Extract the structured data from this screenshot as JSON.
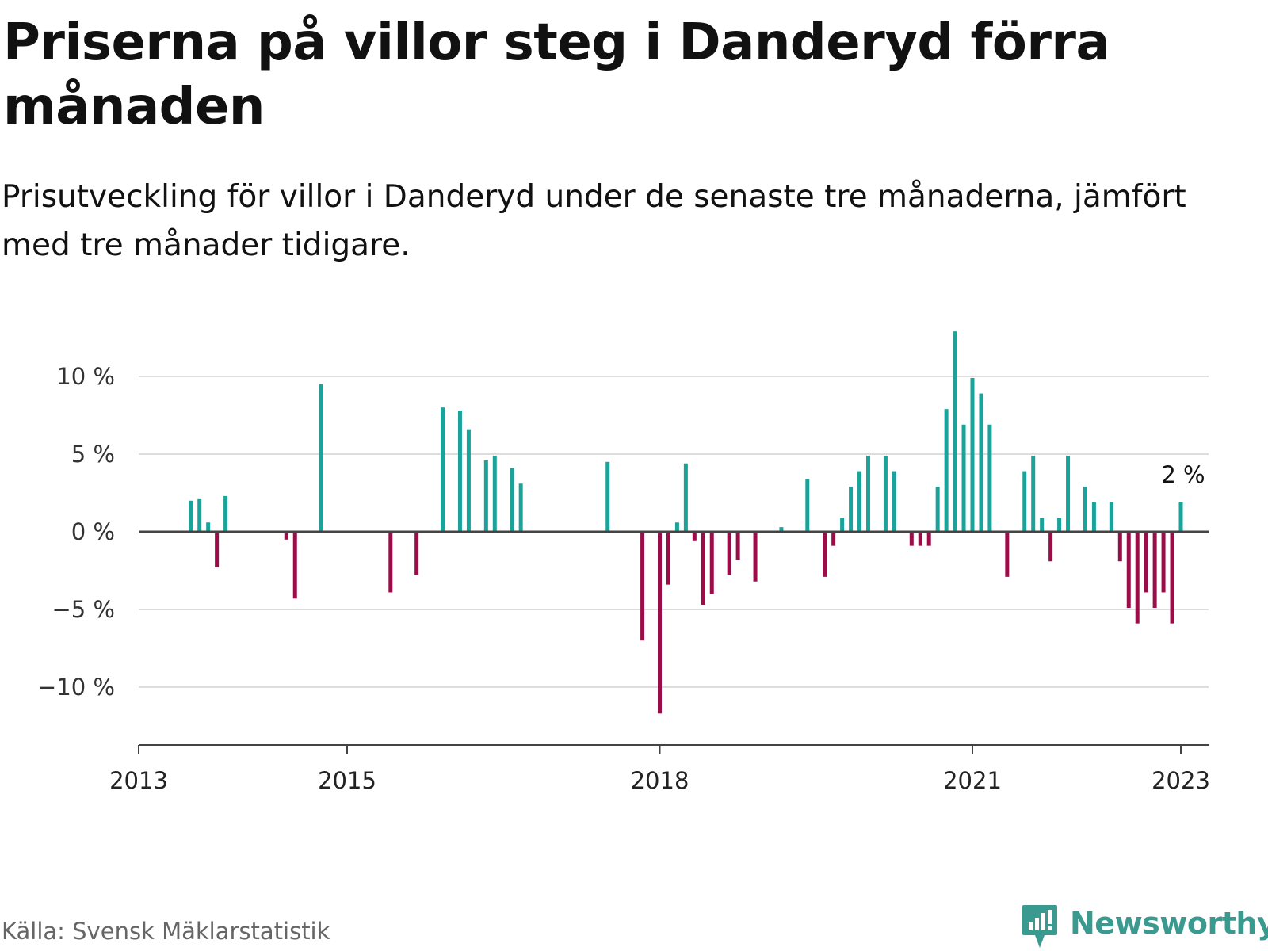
{
  "title": "Priserna på villor steg i Danderyd förra månaden",
  "subtitle": "Prisutveckling för villor i Danderyd under de senaste tre månaderna, jämfört med tre månader tidigare.",
  "source": "Källa: Svensk Mäklarstatistik",
  "brand": "Newsworthy",
  "colors": {
    "positive": "#1aa39a",
    "negative": "#9b0d48",
    "gridline": "#dddddd",
    "zeroline": "#444444",
    "brand": "#3a9a8f"
  },
  "chart_data": {
    "type": "bar",
    "title": "Priserna på villor steg i Danderyd förra månaden",
    "xlabel": "",
    "ylabel": "",
    "ylim": [
      -13.5,
      13
    ],
    "xlim": [
      "2013-01",
      "2023-03"
    ],
    "grid": true,
    "legend": "none",
    "yticks": [
      {
        "value": 10,
        "label": "10 %"
      },
      {
        "value": 5,
        "label": "5 %"
      },
      {
        "value": 0,
        "label": "0 %"
      },
      {
        "value": -5,
        "label": "−5 %"
      },
      {
        "value": -10,
        "label": "−10 %"
      }
    ],
    "xticks": [
      {
        "value": "2013-01",
        "label": "2013"
      },
      {
        "value": "2015-01",
        "label": "2015"
      },
      {
        "value": "2018-01",
        "label": "2018"
      },
      {
        "value": "2021-01",
        "label": "2021"
      },
      {
        "value": "2023-01",
        "label": "2023"
      }
    ],
    "annotation": {
      "x": "2023-01",
      "label": "2 %"
    },
    "bars": [
      {
        "x": "2013-07",
        "value": 2.0
      },
      {
        "x": "2013-08",
        "value": 2.1
      },
      {
        "x": "2013-09",
        "value": 0.6
      },
      {
        "x": "2013-10",
        "value": -2.3
      },
      {
        "x": "2013-11",
        "value": 2.3
      },
      {
        "x": "2014-06",
        "value": -0.5
      },
      {
        "x": "2014-07",
        "value": -4.3
      },
      {
        "x": "2014-10",
        "value": 9.5
      },
      {
        "x": "2015-06",
        "value": -3.9
      },
      {
        "x": "2015-09",
        "value": -2.8
      },
      {
        "x": "2015-12",
        "value": 8.0
      },
      {
        "x": "2016-02",
        "value": 7.8
      },
      {
        "x": "2016-03",
        "value": 6.6
      },
      {
        "x": "2016-05",
        "value": 4.6
      },
      {
        "x": "2016-06",
        "value": 4.9
      },
      {
        "x": "2016-08",
        "value": 4.1
      },
      {
        "x": "2016-09",
        "value": 3.1
      },
      {
        "x": "2017-07",
        "value": 4.5
      },
      {
        "x": "2017-11",
        "value": -7.0
      },
      {
        "x": "2018-01",
        "value": -11.7
      },
      {
        "x": "2018-02",
        "value": -3.4
      },
      {
        "x": "2018-03",
        "value": 0.6
      },
      {
        "x": "2018-04",
        "value": 4.4
      },
      {
        "x": "2018-05",
        "value": -0.6
      },
      {
        "x": "2018-06",
        "value": -4.7
      },
      {
        "x": "2018-07",
        "value": -4.0
      },
      {
        "x": "2018-09",
        "value": -2.8
      },
      {
        "x": "2018-10",
        "value": -1.8
      },
      {
        "x": "2018-12",
        "value": -3.2
      },
      {
        "x": "2019-03",
        "value": 0.3
      },
      {
        "x": "2019-06",
        "value": 3.4
      },
      {
        "x": "2019-08",
        "value": -2.9
      },
      {
        "x": "2019-09",
        "value": -0.9
      },
      {
        "x": "2019-10",
        "value": 0.9
      },
      {
        "x": "2019-11",
        "value": 2.9
      },
      {
        "x": "2019-12",
        "value": 3.9
      },
      {
        "x": "2020-01",
        "value": 4.9
      },
      {
        "x": "2020-03",
        "value": 4.9
      },
      {
        "x": "2020-04",
        "value": 3.9
      },
      {
        "x": "2020-06",
        "value": -0.9
      },
      {
        "x": "2020-07",
        "value": -0.9
      },
      {
        "x": "2020-08",
        "value": -0.9
      },
      {
        "x": "2020-09",
        "value": 2.9
      },
      {
        "x": "2020-10",
        "value": 7.9
      },
      {
        "x": "2020-11",
        "value": 12.9
      },
      {
        "x": "2020-12",
        "value": 6.9
      },
      {
        "x": "2021-01",
        "value": 9.9
      },
      {
        "x": "2021-02",
        "value": 8.9
      },
      {
        "x": "2021-03",
        "value": 6.9
      },
      {
        "x": "2021-05",
        "value": -2.9
      },
      {
        "x": "2021-07",
        "value": 3.9
      },
      {
        "x": "2021-08",
        "value": 4.9
      },
      {
        "x": "2021-09",
        "value": 0.9
      },
      {
        "x": "2021-10",
        "value": -1.9
      },
      {
        "x": "2021-11",
        "value": 0.9
      },
      {
        "x": "2021-12",
        "value": 4.9
      },
      {
        "x": "2022-02",
        "value": 2.9
      },
      {
        "x": "2022-03",
        "value": 1.9
      },
      {
        "x": "2022-05",
        "value": 1.9
      },
      {
        "x": "2022-06",
        "value": -1.9
      },
      {
        "x": "2022-07",
        "value": -4.9
      },
      {
        "x": "2022-08",
        "value": -5.9
      },
      {
        "x": "2022-09",
        "value": -3.9
      },
      {
        "x": "2022-10",
        "value": -4.9
      },
      {
        "x": "2022-11",
        "value": -3.9
      },
      {
        "x": "2022-12",
        "value": -5.9
      },
      {
        "x": "2023-01",
        "value": 1.9
      }
    ]
  }
}
